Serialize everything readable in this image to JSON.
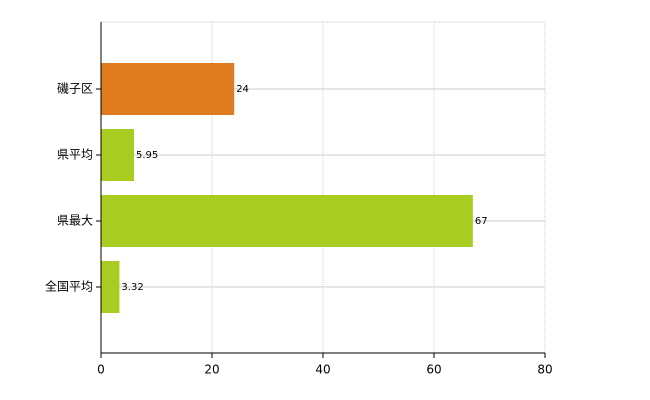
{
  "chart_data": {
    "type": "bar",
    "orientation": "horizontal",
    "categories": [
      "磯子区",
      "県平均",
      "県最大",
      "全国平均"
    ],
    "values": [
      24,
      5.95,
      67,
      3.32
    ],
    "colors": [
      "#e07b20",
      "#a8cc20",
      "#a8cc20",
      "#a8cc20"
    ],
    "xlim": [
      0,
      80
    ],
    "xticks": [
      0,
      20,
      40,
      60,
      80
    ],
    "grid": true
  }
}
